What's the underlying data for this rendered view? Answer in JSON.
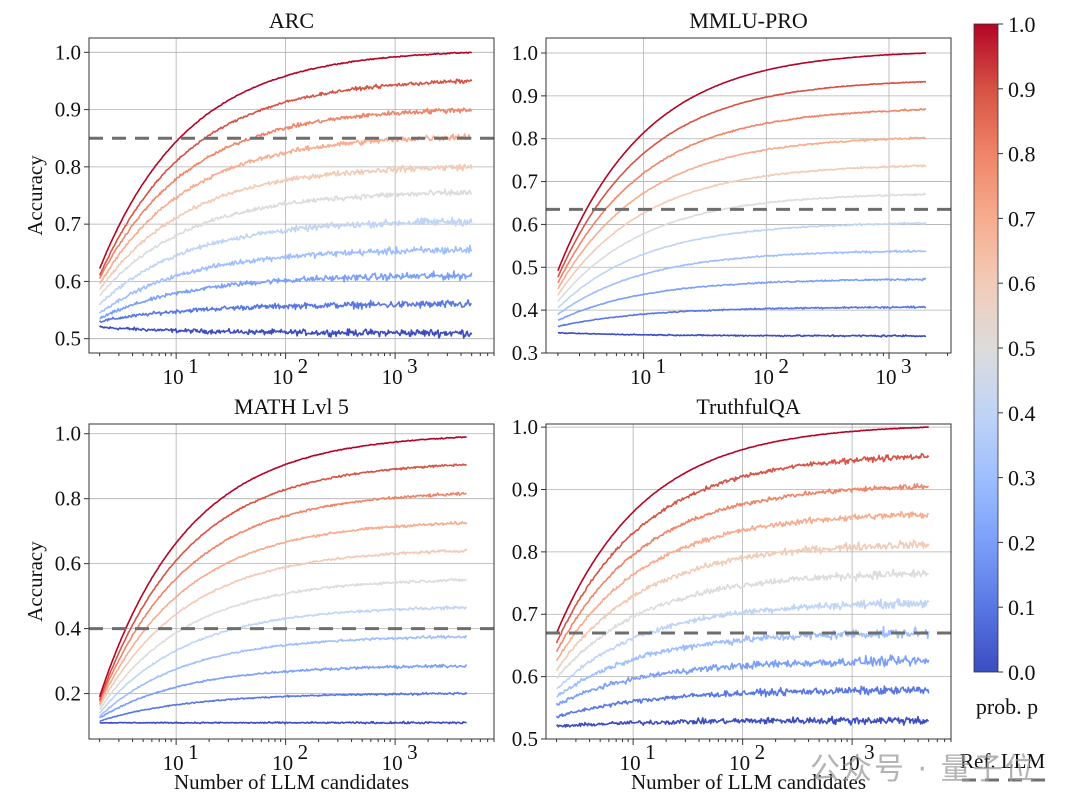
{
  "chart_data": [
    {
      "type": "line",
      "title": "ARC",
      "xlabel": "",
      "ylabel": "Accuracy",
      "xscale": "log",
      "xlim": [
        1.6,
        8000
      ],
      "x_range_data": [
        2,
        5000
      ],
      "ylim": [
        0.475,
        1.025
      ],
      "yticks": [
        0.5,
        0.6,
        0.7,
        0.8,
        0.9,
        1.0
      ],
      "ytick_labels": [
        "0.5",
        "0.6",
        "0.7",
        "0.8",
        "0.9",
        "1.0"
      ],
      "xtick_labels": [
        "10^1",
        "10^2",
        "10^3"
      ],
      "ref_llm_accuracy": 0.85,
      "grid": true,
      "series": [
        {
          "p": 0.0,
          "start": 0.52,
          "end": 0.51,
          "noise": 0.006
        },
        {
          "p": 0.1,
          "start": 0.53,
          "end": 0.56,
          "noise": 0.006
        },
        {
          "p": 0.2,
          "start": 0.535,
          "end": 0.61,
          "noise": 0.006
        },
        {
          "p": 0.3,
          "start": 0.545,
          "end": 0.655,
          "noise": 0.006
        },
        {
          "p": 0.4,
          "start": 0.56,
          "end": 0.705,
          "noise": 0.006
        },
        {
          "p": 0.5,
          "start": 0.575,
          "end": 0.755,
          "noise": 0.005
        },
        {
          "p": 0.6,
          "start": 0.585,
          "end": 0.8,
          "noise": 0.005
        },
        {
          "p": 0.7,
          "start": 0.595,
          "end": 0.853,
          "noise": 0.005
        },
        {
          "p": 0.8,
          "start": 0.605,
          "end": 0.9,
          "noise": 0.004
        },
        {
          "p": 0.9,
          "start": 0.61,
          "end": 0.95,
          "noise": 0.003
        },
        {
          "p": 1.0,
          "start": 0.622,
          "end": 1.0,
          "noise": 0.002
        }
      ]
    },
    {
      "type": "line",
      "title": "MMLU-PRO",
      "xlabel": "",
      "ylabel": "",
      "xscale": "log",
      "xlim": [
        1.6,
        3200
      ],
      "x_range_data": [
        2,
        2000
      ],
      "ylim": [
        0.3,
        1.035
      ],
      "yticks": [
        0.3,
        0.4,
        0.5,
        0.6,
        0.7,
        0.8,
        0.9,
        1.0
      ],
      "ytick_labels": [
        "0.3",
        "0.4",
        "0.5",
        "0.6",
        "0.7",
        "0.8",
        "0.9",
        "1.0"
      ],
      "xtick_labels": [
        "10^1",
        "10^2",
        "10^3"
      ],
      "ref_llm_accuracy": 0.635,
      "grid": true,
      "series": [
        {
          "p": 0.0,
          "start": 0.347,
          "end": 0.34,
          "noise": 0.002
        },
        {
          "p": 0.1,
          "start": 0.362,
          "end": 0.407,
          "noise": 0.002
        },
        {
          "p": 0.2,
          "start": 0.376,
          "end": 0.472,
          "noise": 0.002
        },
        {
          "p": 0.3,
          "start": 0.39,
          "end": 0.538,
          "noise": 0.002
        },
        {
          "p": 0.4,
          "start": 0.405,
          "end": 0.603,
          "noise": 0.002
        },
        {
          "p": 0.5,
          "start": 0.42,
          "end": 0.67,
          "noise": 0.002
        },
        {
          "p": 0.6,
          "start": 0.435,
          "end": 0.737,
          "noise": 0.002
        },
        {
          "p": 0.7,
          "start": 0.45,
          "end": 0.802,
          "noise": 0.002
        },
        {
          "p": 0.8,
          "start": 0.463,
          "end": 0.868,
          "noise": 0.002
        },
        {
          "p": 0.9,
          "start": 0.477,
          "end": 0.933,
          "noise": 0.001
        },
        {
          "p": 1.0,
          "start": 0.492,
          "end": 1.0,
          "noise": 0.001
        }
      ]
    },
    {
      "type": "line",
      "title": "MATH Lvl 5",
      "xlabel": "Number of LLM candidates",
      "ylabel": "Accuracy",
      "xscale": "log",
      "xlim": [
        1.6,
        8000
      ],
      "x_range_data": [
        2,
        4500
      ],
      "ylim": [
        0.06,
        1.03
      ],
      "yticks": [
        0.2,
        0.4,
        0.6,
        0.8,
        1.0
      ],
      "ytick_labels": [
        "0.2",
        "0.4",
        "0.6",
        "0.8",
        "1.0"
      ],
      "xtick_labels": [
        "10^1",
        "10^2",
        "10^3"
      ],
      "ref_llm_accuracy": 0.4,
      "grid": true,
      "series": [
        {
          "p": 0.0,
          "start": 0.11,
          "end": 0.11,
          "noise": 0.003
        },
        {
          "p": 0.1,
          "start": 0.115,
          "end": 0.2,
          "noise": 0.003
        },
        {
          "p": 0.2,
          "start": 0.125,
          "end": 0.285,
          "noise": 0.004
        },
        {
          "p": 0.3,
          "start": 0.13,
          "end": 0.375,
          "noise": 0.004
        },
        {
          "p": 0.4,
          "start": 0.14,
          "end": 0.465,
          "noise": 0.004
        },
        {
          "p": 0.5,
          "start": 0.15,
          "end": 0.55,
          "noise": 0.004
        },
        {
          "p": 0.6,
          "start": 0.16,
          "end": 0.64,
          "noise": 0.004
        },
        {
          "p": 0.7,
          "start": 0.168,
          "end": 0.725,
          "noise": 0.004
        },
        {
          "p": 0.8,
          "start": 0.175,
          "end": 0.815,
          "noise": 0.004
        },
        {
          "p": 0.9,
          "start": 0.18,
          "end": 0.905,
          "noise": 0.003
        },
        {
          "p": 1.0,
          "start": 0.19,
          "end": 0.99,
          "noise": 0.003
        }
      ]
    },
    {
      "type": "line",
      "title": "TruthfulQA",
      "xlabel": "Number of LLM candidates",
      "ylabel": "",
      "xscale": "log",
      "xlim": [
        1.6,
        8000
      ],
      "x_range_data": [
        2,
        5000
      ],
      "ylim": [
        0.5,
        1.005
      ],
      "yticks": [
        0.5,
        0.6,
        0.7,
        0.8,
        0.9,
        1.0
      ],
      "ytick_labels": [
        "0.5",
        "0.6",
        "0.7",
        "0.8",
        "0.9",
        "1.0"
      ],
      "xtick_labels": [
        "10^1",
        "10^2",
        "10^3"
      ],
      "ref_llm_accuracy": 0.67,
      "grid": true,
      "series": [
        {
          "p": 0.0,
          "start": 0.52,
          "end": 0.53,
          "noise": 0.006
        },
        {
          "p": 0.1,
          "start": 0.535,
          "end": 0.578,
          "noise": 0.006
        },
        {
          "p": 0.2,
          "start": 0.555,
          "end": 0.625,
          "noise": 0.007
        },
        {
          "p": 0.3,
          "start": 0.568,
          "end": 0.67,
          "noise": 0.007
        },
        {
          "p": 0.4,
          "start": 0.58,
          "end": 0.718,
          "noise": 0.006
        },
        {
          "p": 0.5,
          "start": 0.597,
          "end": 0.765,
          "noise": 0.006
        },
        {
          "p": 0.6,
          "start": 0.61,
          "end": 0.812,
          "noise": 0.006
        },
        {
          "p": 0.7,
          "start": 0.625,
          "end": 0.86,
          "noise": 0.005
        },
        {
          "p": 0.8,
          "start": 0.64,
          "end": 0.905,
          "noise": 0.004
        },
        {
          "p": 0.9,
          "start": 0.655,
          "end": 0.953,
          "noise": 0.004
        },
        {
          "p": 1.0,
          "start": 0.67,
          "end": 1.0,
          "noise": 0.001
        }
      ]
    }
  ],
  "colorbar": {
    "label": "prob. p",
    "range": [
      0.0,
      1.0
    ],
    "ticks": [
      "0.0",
      "0.1",
      "0.2",
      "0.3",
      "0.4",
      "0.5",
      "0.6",
      "0.7",
      "0.8",
      "0.9",
      "1.0"
    ],
    "colormap": "coolwarm",
    "colors": [
      "#3b4cc0",
      "#5977e3",
      "#7b9ff9",
      "#9ebeff",
      "#c0d4f5",
      "#dddcdc",
      "#f2cbb7",
      "#f7ac8e",
      "#ee8468",
      "#d65244",
      "#b40426"
    ]
  },
  "legend": {
    "label": "Ref. LLM",
    "style": "dashed",
    "color": "#707070"
  },
  "watermark": "公众号 · 量子位"
}
